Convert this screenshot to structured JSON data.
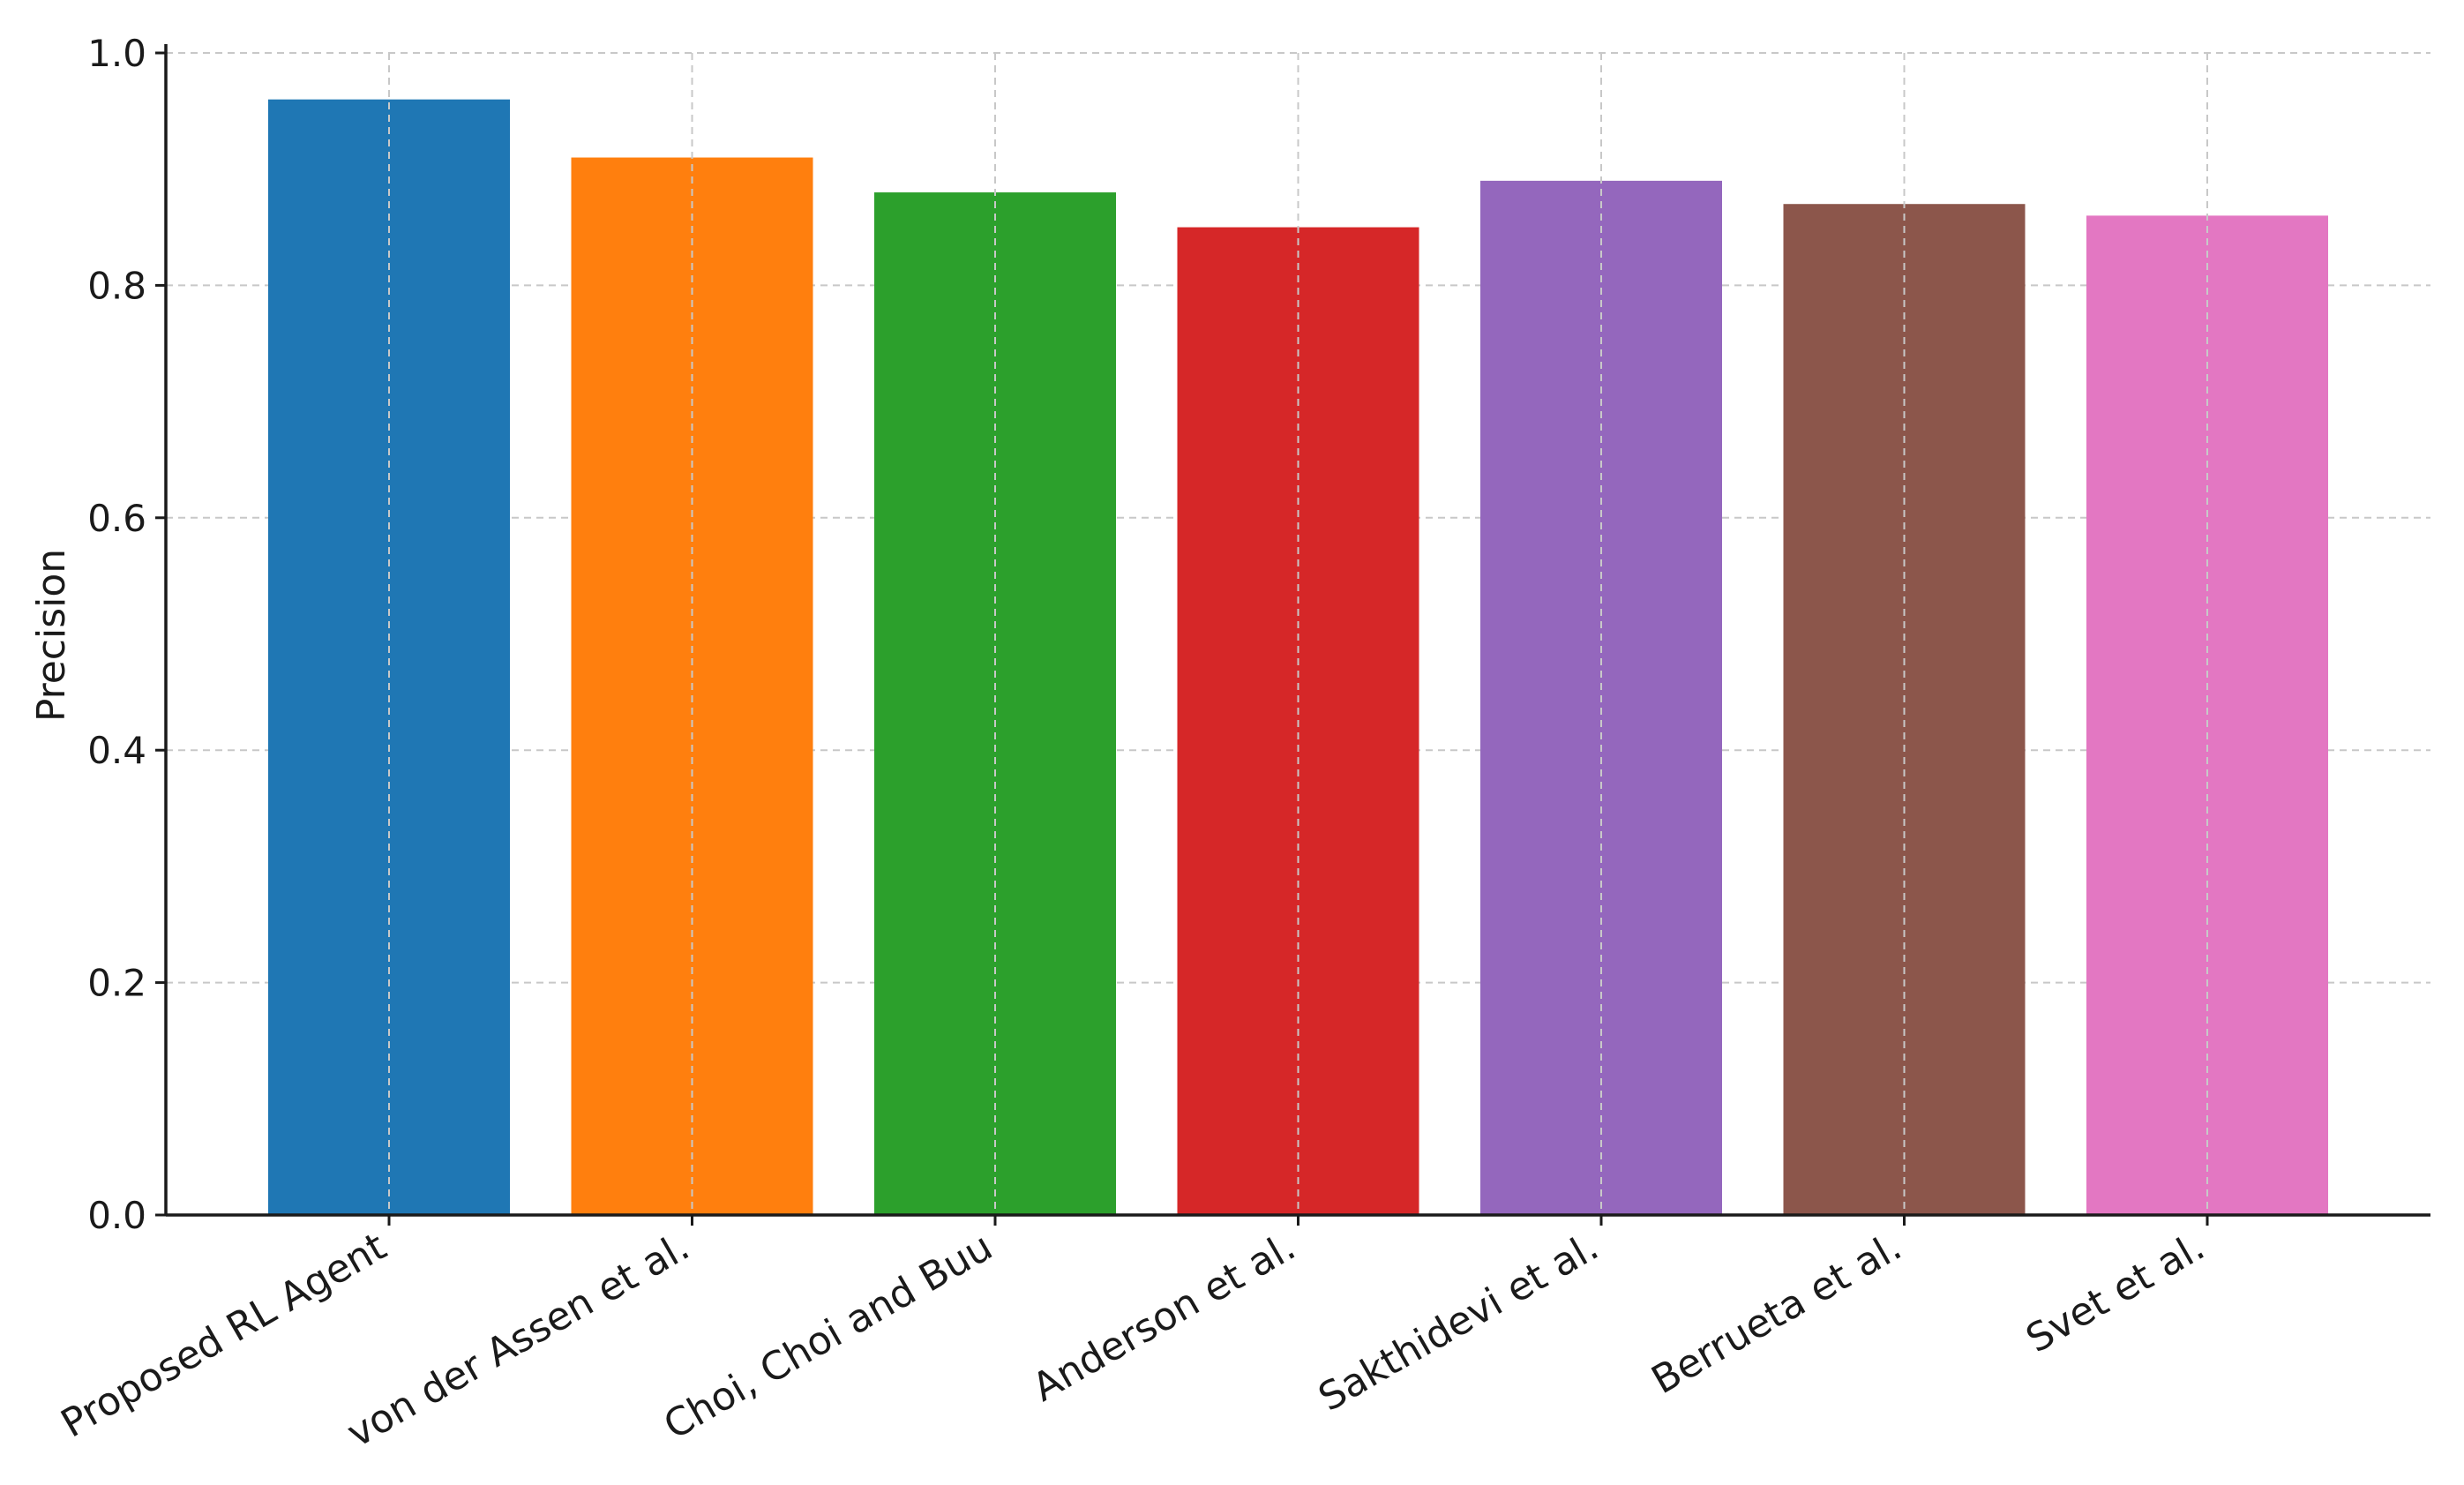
{
  "chart_data": {
    "type": "bar",
    "title": "",
    "xlabel": "",
    "ylabel": "Precision",
    "ylim": [
      0,
      1.0
    ],
    "yticks": [
      0.0,
      0.2,
      0.4,
      0.6,
      0.8,
      1.0
    ],
    "ytick_labels": [
      "0.0",
      "0.2",
      "0.4",
      "0.6",
      "0.8",
      "1.0"
    ],
    "grid": true,
    "categories": [
      "Proposed RL Agent",
      "von der Assen et al.",
      "Choi, Choi and Buu",
      "Anderson et al.",
      "Sakthidevi et al.",
      "Berrueta et al.",
      "Svet et al."
    ],
    "values": [
      0.96,
      0.91,
      0.88,
      0.85,
      0.89,
      0.87,
      0.86
    ],
    "colors": [
      "#1f77b4",
      "#ff7f0e",
      "#2ca02c",
      "#d62728",
      "#9467bd",
      "#8c564b",
      "#e377c2"
    ]
  }
}
